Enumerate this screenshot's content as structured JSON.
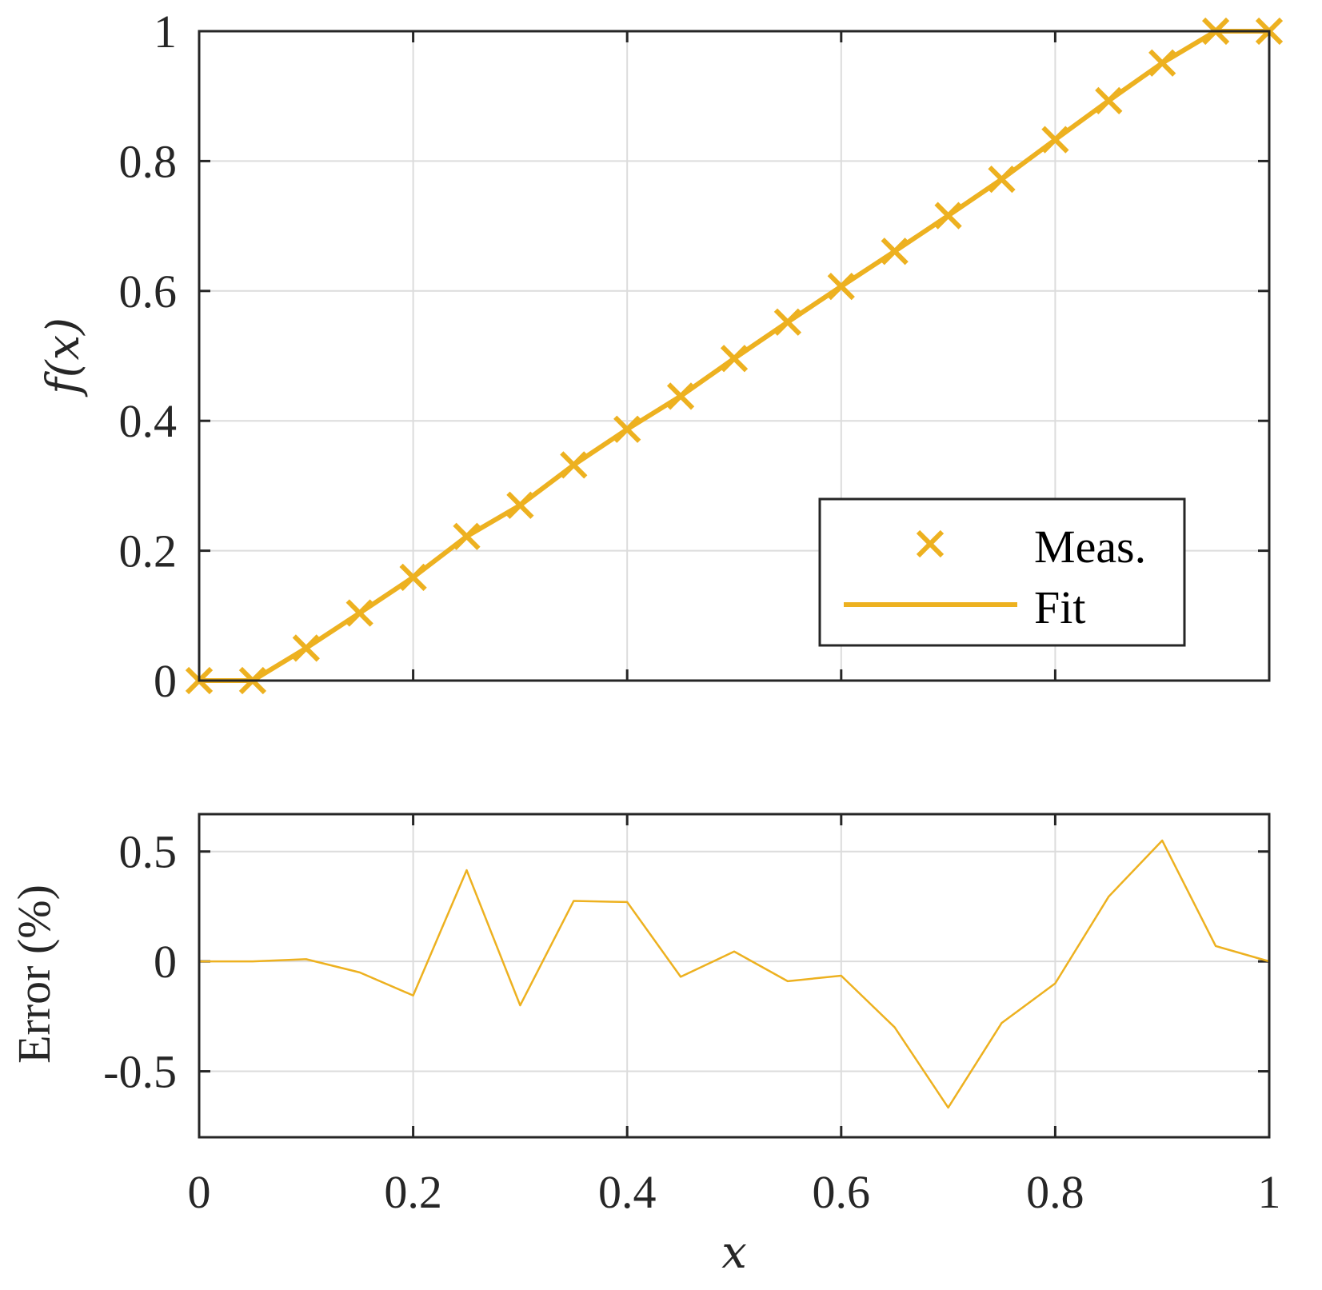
{
  "colors": {
    "series": "#EDB120",
    "axis": "#262626",
    "grid": "#dcdcdc"
  },
  "chart_data": [
    {
      "type": "line",
      "xlabel": "x",
      "ylabel": "f(x)",
      "xlim": [
        0,
        1
      ],
      "ylim": [
        0,
        1
      ],
      "grid": true,
      "legend_placement": "bottom-right",
      "x_ticks": [
        "0",
        "0.2",
        "0.4",
        "0.6",
        "0.8",
        "1"
      ],
      "y_ticks": [
        "0",
        "0.2",
        "0.4",
        "0.6",
        "0.8",
        "1"
      ],
      "x_tick_values": [
        0,
        0.2,
        0.4,
        0.6,
        0.8,
        1
      ],
      "y_tick_values": [
        0,
        0.2,
        0.4,
        0.6,
        0.8,
        1
      ],
      "x": [
        0,
        0.05,
        0.1,
        0.15,
        0.2,
        0.25,
        0.3,
        0.35,
        0.4,
        0.45,
        0.5,
        0.55,
        0.6,
        0.65,
        0.7,
        0.75,
        0.8,
        0.85,
        0.9,
        0.95,
        1.0
      ],
      "series": [
        {
          "name": "Meas.",
          "style": "markers-x",
          "values": [
            0,
            0,
            0.05,
            0.104,
            0.159,
            0.222,
            0.27,
            0.332,
            0.387,
            0.438,
            0.496,
            0.552,
            0.607,
            0.661,
            0.716,
            0.772,
            0.833,
            0.893,
            0.951,
            1.0,
            1.0
          ]
        },
        {
          "name": "Fit",
          "style": "line",
          "values": [
            0,
            0,
            0.05,
            0.104,
            0.159,
            0.222,
            0.27,
            0.332,
            0.387,
            0.438,
            0.496,
            0.552,
            0.607,
            0.661,
            0.716,
            0.772,
            0.833,
            0.893,
            0.951,
            1.0,
            1.0
          ]
        }
      ]
    },
    {
      "type": "line",
      "xlabel": "x",
      "ylabel": "Error (%)",
      "xlim": [
        0,
        1
      ],
      "ylim": [
        -0.8,
        0.67
      ],
      "grid": true,
      "x_ticks": [
        "0",
        "0.2",
        "0.4",
        "0.6",
        "0.8",
        "1"
      ],
      "y_ticks": [
        "-0.5",
        "0",
        "0.5"
      ],
      "x_tick_values": [
        0,
        0.2,
        0.4,
        0.6,
        0.8,
        1
      ],
      "y_tick_values": [
        -0.5,
        0,
        0.5
      ],
      "x": [
        0,
        0.05,
        0.1,
        0.15,
        0.2,
        0.25,
        0.3,
        0.35,
        0.4,
        0.45,
        0.5,
        0.55,
        0.6,
        0.65,
        0.7,
        0.75,
        0.8,
        0.85,
        0.9,
        0.95,
        1.0
      ],
      "series": [
        {
          "values": [
            0,
            0,
            0.01,
            -0.05,
            -0.155,
            0.415,
            -0.2,
            0.275,
            0.27,
            -0.07,
            0.045,
            -0.09,
            -0.065,
            -0.3,
            -0.665,
            -0.28,
            -0.1,
            0.295,
            0.55,
            0.07,
            0
          ]
        }
      ]
    }
  ],
  "legend": {
    "entries": [
      "Meas.",
      "Fit"
    ]
  }
}
